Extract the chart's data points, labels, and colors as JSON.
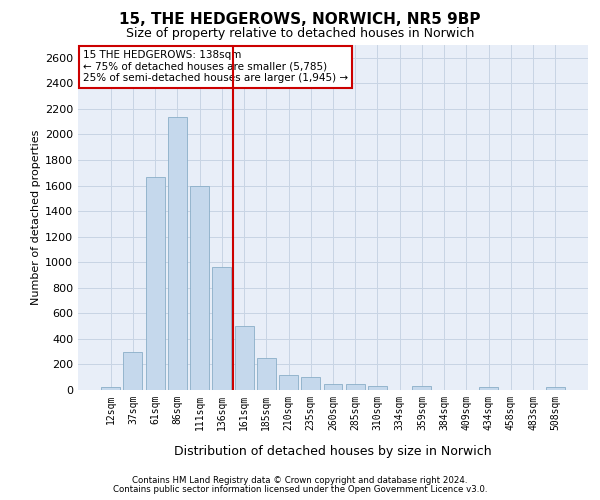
{
  "title_line1": "15, THE HEDGEROWS, NORWICH, NR5 9BP",
  "title_line2": "Size of property relative to detached houses in Norwich",
  "xlabel": "Distribution of detached houses by size in Norwich",
  "ylabel": "Number of detached properties",
  "footer_line1": "Contains HM Land Registry data © Crown copyright and database right 2024.",
  "footer_line2": "Contains public sector information licensed under the Open Government Licence v3.0.",
  "annotation_line1": "15 THE HEDGEROWS: 138sqm",
  "annotation_line2": "← 75% of detached houses are smaller (5,785)",
  "annotation_line3": "25% of semi-detached houses are larger (1,945) →",
  "bar_color": "#c5d8ec",
  "bar_edgecolor": "#8aaec8",
  "vline_color": "#cc0000",
  "annotation_box_edgecolor": "#cc0000",
  "annotation_box_facecolor": "#ffffff",
  "grid_color": "#c8d4e4",
  "background_color": "#e8eef8",
  "categories": [
    "12sqm",
    "37sqm",
    "61sqm",
    "86sqm",
    "111sqm",
    "136sqm",
    "161sqm",
    "185sqm",
    "210sqm",
    "235sqm",
    "260sqm",
    "285sqm",
    "310sqm",
    "334sqm",
    "359sqm",
    "384sqm",
    "409sqm",
    "434sqm",
    "458sqm",
    "483sqm",
    "508sqm"
  ],
  "values": [
    25,
    300,
    1670,
    2140,
    1600,
    960,
    500,
    250,
    120,
    100,
    50,
    50,
    30,
    0,
    30,
    0,
    0,
    20,
    0,
    0,
    25
  ],
  "vline_pos": 5.5,
  "ylim": [
    0,
    2700
  ],
  "yticks": [
    0,
    200,
    400,
    600,
    800,
    1000,
    1200,
    1400,
    1600,
    1800,
    2000,
    2200,
    2400,
    2600
  ],
  "title_fontsize": 11,
  "subtitle_fontsize": 9,
  "ylabel_fontsize": 8,
  "xlabel_fontsize": 9,
  "tick_fontsize": 8,
  "xtick_fontsize": 7,
  "annotation_fontsize": 7.5,
  "footer_fontsize": 6.2
}
